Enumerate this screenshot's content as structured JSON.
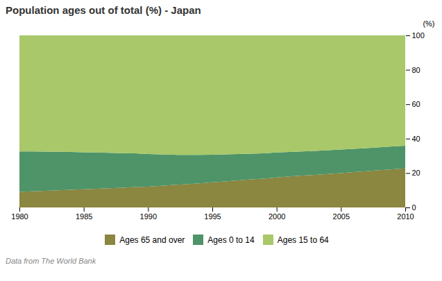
{
  "chart_data": {
    "type": "area",
    "title": "Population ages out of total (%) - Japan",
    "ylabel": "(%)",
    "footnote": "Data from The World Bank",
    "stacked": true,
    "grid": false,
    "legend": "bottom",
    "x": [
      1980,
      1981,
      1982,
      1983,
      1984,
      1985,
      1986,
      1987,
      1988,
      1989,
      1990,
      1991,
      1992,
      1993,
      1994,
      1995,
      1996,
      1997,
      1998,
      1999,
      2000,
      2001,
      2002,
      2003,
      2004,
      2005,
      2006,
      2007,
      2008,
      2009,
      2010
    ],
    "series": [
      {
        "name": "Ages 65 and over",
        "color": "#8b8640",
        "values": [
          9.1,
          9.4,
          9.7,
          10.0,
          10.3,
          10.6,
          10.9,
          11.2,
          11.5,
          11.9,
          12.1,
          12.6,
          13.1,
          13.5,
          14.0,
          14.6,
          15.1,
          15.7,
          16.3,
          16.7,
          17.4,
          18.0,
          18.5,
          19.0,
          19.5,
          20.0,
          20.6,
          21.1,
          21.7,
          22.2,
          22.7
        ]
      },
      {
        "name": "Ages 0 to 14",
        "color": "#4e9468",
        "values": [
          23.5,
          23.2,
          22.8,
          22.4,
          22.0,
          21.5,
          21.1,
          20.6,
          20.1,
          19.6,
          18.9,
          18.2,
          17.5,
          17.0,
          16.5,
          16.0,
          15.7,
          15.3,
          15.0,
          14.8,
          14.6,
          14.3,
          14.1,
          13.9,
          13.8,
          13.7,
          13.5,
          13.4,
          13.3,
          13.3,
          13.2
        ]
      },
      {
        "name": "Ages 15 to 64",
        "color": "#a8c86a",
        "values": [
          67.4,
          67.4,
          67.5,
          67.6,
          67.7,
          67.9,
          68.0,
          68.2,
          68.4,
          68.5,
          69.0,
          69.2,
          69.4,
          69.5,
          69.5,
          69.4,
          69.2,
          69.0,
          68.7,
          68.5,
          68.0,
          67.7,
          67.4,
          67.1,
          66.7,
          66.3,
          65.9,
          65.5,
          65.0,
          64.5,
          64.1
        ]
      }
    ],
    "xlim": [
      1980,
      2010
    ],
    "xticks": [
      1980,
      1985,
      1990,
      1995,
      2000,
      2005,
      2010
    ],
    "ylim": [
      0,
      100
    ],
    "yticks": [
      0,
      20,
      40,
      60,
      80,
      100
    ]
  }
}
